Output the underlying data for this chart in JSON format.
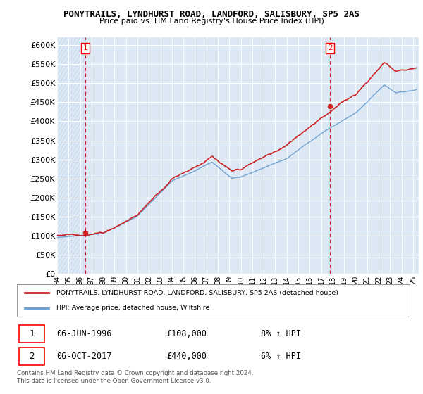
{
  "title": "PONYTRAILS, LYNDHURST ROAD, LANDFORD, SALISBURY, SP5 2AS",
  "subtitle": "Price paid vs. HM Land Registry's House Price Index (HPI)",
  "ylim": [
    0,
    620000
  ],
  "yticks": [
    0,
    50000,
    100000,
    150000,
    200000,
    250000,
    300000,
    350000,
    400000,
    450000,
    500000,
    550000,
    600000
  ],
  "ytick_labels": [
    "£0",
    "£50K",
    "£100K",
    "£150K",
    "£200K",
    "£250K",
    "£300K",
    "£350K",
    "£400K",
    "£450K",
    "£500K",
    "£550K",
    "£600K"
  ],
  "background_color": "#ffffff",
  "plot_bg_color": "#dce9f5",
  "hatch_color": "#c5d8ed",
  "grid_color": "#ffffff",
  "hpi_color": "#6699cc",
  "property_color": "#cc2222",
  "dashed_line_color": "#cc2222",
  "legend_property_label": "PONYTRAILS, LYNDHURST ROAD, LANDFORD, SALISBURY, SP5 2AS (detached house)",
  "legend_hpi_label": "HPI: Average price, detached house, Wiltshire",
  "annotation1_date": "06-JUN-1996",
  "annotation1_price": "£108,000",
  "annotation1_hpi": "8% ↑ HPI",
  "annotation2_date": "06-OCT-2017",
  "annotation2_price": "£440,000",
  "annotation2_hpi": "6% ↑ HPI",
  "footer": "Contains HM Land Registry data © Crown copyright and database right 2024.\nThis data is licensed under the Open Government Licence v3.0.",
  "sale1_x": 1996.44,
  "sale1_y": 108000,
  "sale2_x": 2017.77,
  "sale2_y": 440000,
  "xmin": 1994,
  "xmax": 2025.5
}
